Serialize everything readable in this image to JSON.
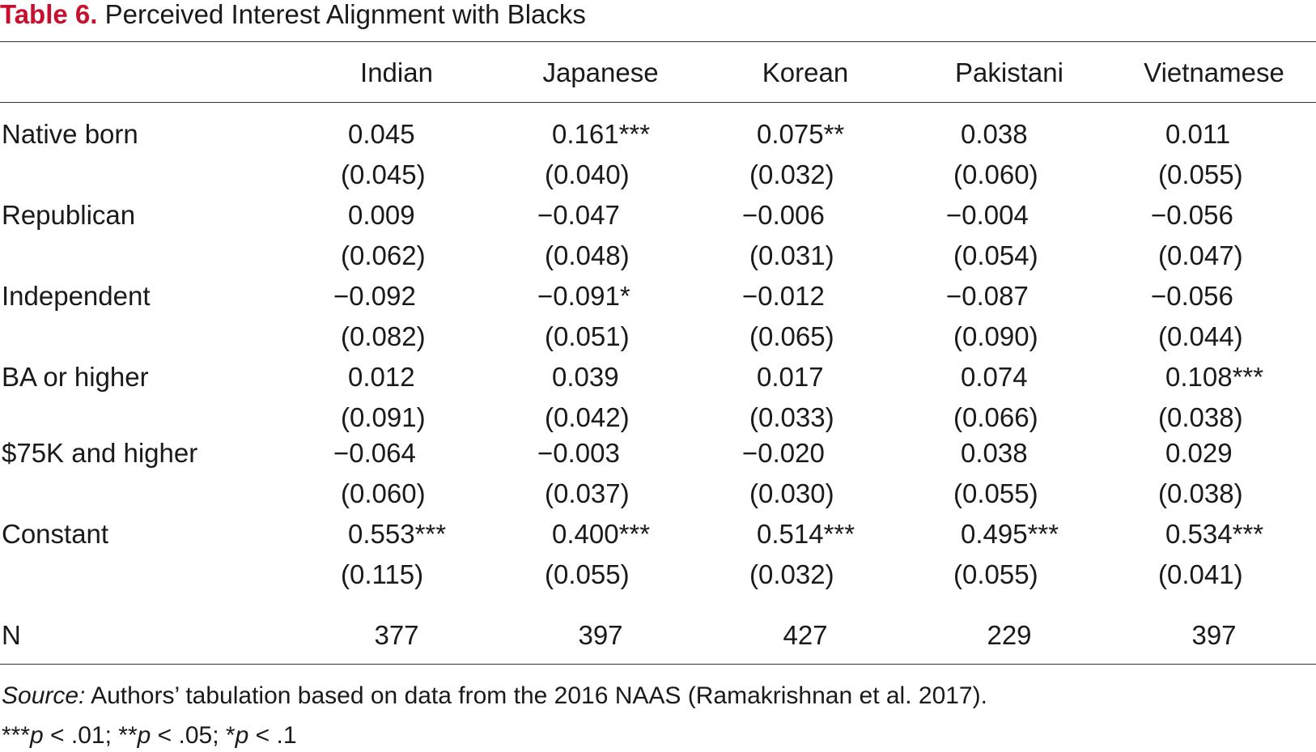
{
  "title": {
    "label": "Table 6.",
    "text": " Perceived Interest Alignment with Blacks"
  },
  "columns": [
    "Indian",
    "Japanese",
    "Korean",
    "Pakistani",
    "Vietnamese"
  ],
  "rows": [
    {
      "label": "Native born",
      "coef": [
        "0.045",
        "0.161***",
        "0.075**",
        "0.038",
        "0.011"
      ],
      "se": [
        "(0.045)",
        "(0.040)",
        "(0.032)",
        "(0.060)",
        "(0.055)"
      ]
    },
    {
      "label": "Republican",
      "coef": [
        "0.009",
        "−0.047",
        "−0.006",
        "−0.004",
        "−0.056"
      ],
      "se": [
        "(0.062)",
        "(0.048)",
        "(0.031)",
        "(0.054)",
        "(0.047)"
      ]
    },
    {
      "label": "Independent",
      "coef": [
        "−0.092",
        "−0.091*",
        "−0.012",
        "−0.087",
        "−0.056"
      ],
      "se": [
        "(0.082)",
        "(0.051)",
        "(0.065)",
        "(0.090)",
        "(0.044)"
      ]
    },
    {
      "label": "BA or higher",
      "coef": [
        "0.012",
        "0.039",
        "0.017",
        "0.074",
        "0.108***"
      ],
      "se": [
        "(0.091)",
        "(0.042)",
        "(0.033)",
        "(0.066)",
        "(0.038)"
      ]
    },
    {
      "label": "$75K and higher",
      "coef": [
        "−0.064",
        "−0.003",
        "−0.020",
        "0.038",
        "0.029"
      ],
      "se": [
        "(0.060)",
        "(0.037)",
        "(0.030)",
        "(0.055)",
        "(0.038)"
      ]
    },
    {
      "label": "Constant",
      "coef": [
        "0.553***",
        "0.400***",
        "0.514***",
        "0.495***",
        "0.534***"
      ],
      "se": [
        "(0.115)",
        "(0.055)",
        "(0.032)",
        "(0.055)",
        "(0.041)"
      ]
    }
  ],
  "n_row": {
    "label": "N",
    "values": [
      "377",
      "397",
      "427",
      "229",
      "397"
    ]
  },
  "footnotes": {
    "source_label": "Source:",
    "source_text": " Authors’ tabulation based on data from the 2016 NAAS (Ramakrishnan et al. 2017).",
    "sig": [
      {
        "stars": "***",
        "p": "p",
        "rest": " < .01; "
      },
      {
        "stars": "**",
        "p": "p",
        "rest": " < .05; "
      },
      {
        "stars": "*",
        "p": "p",
        "rest": " < .1"
      }
    ]
  }
}
